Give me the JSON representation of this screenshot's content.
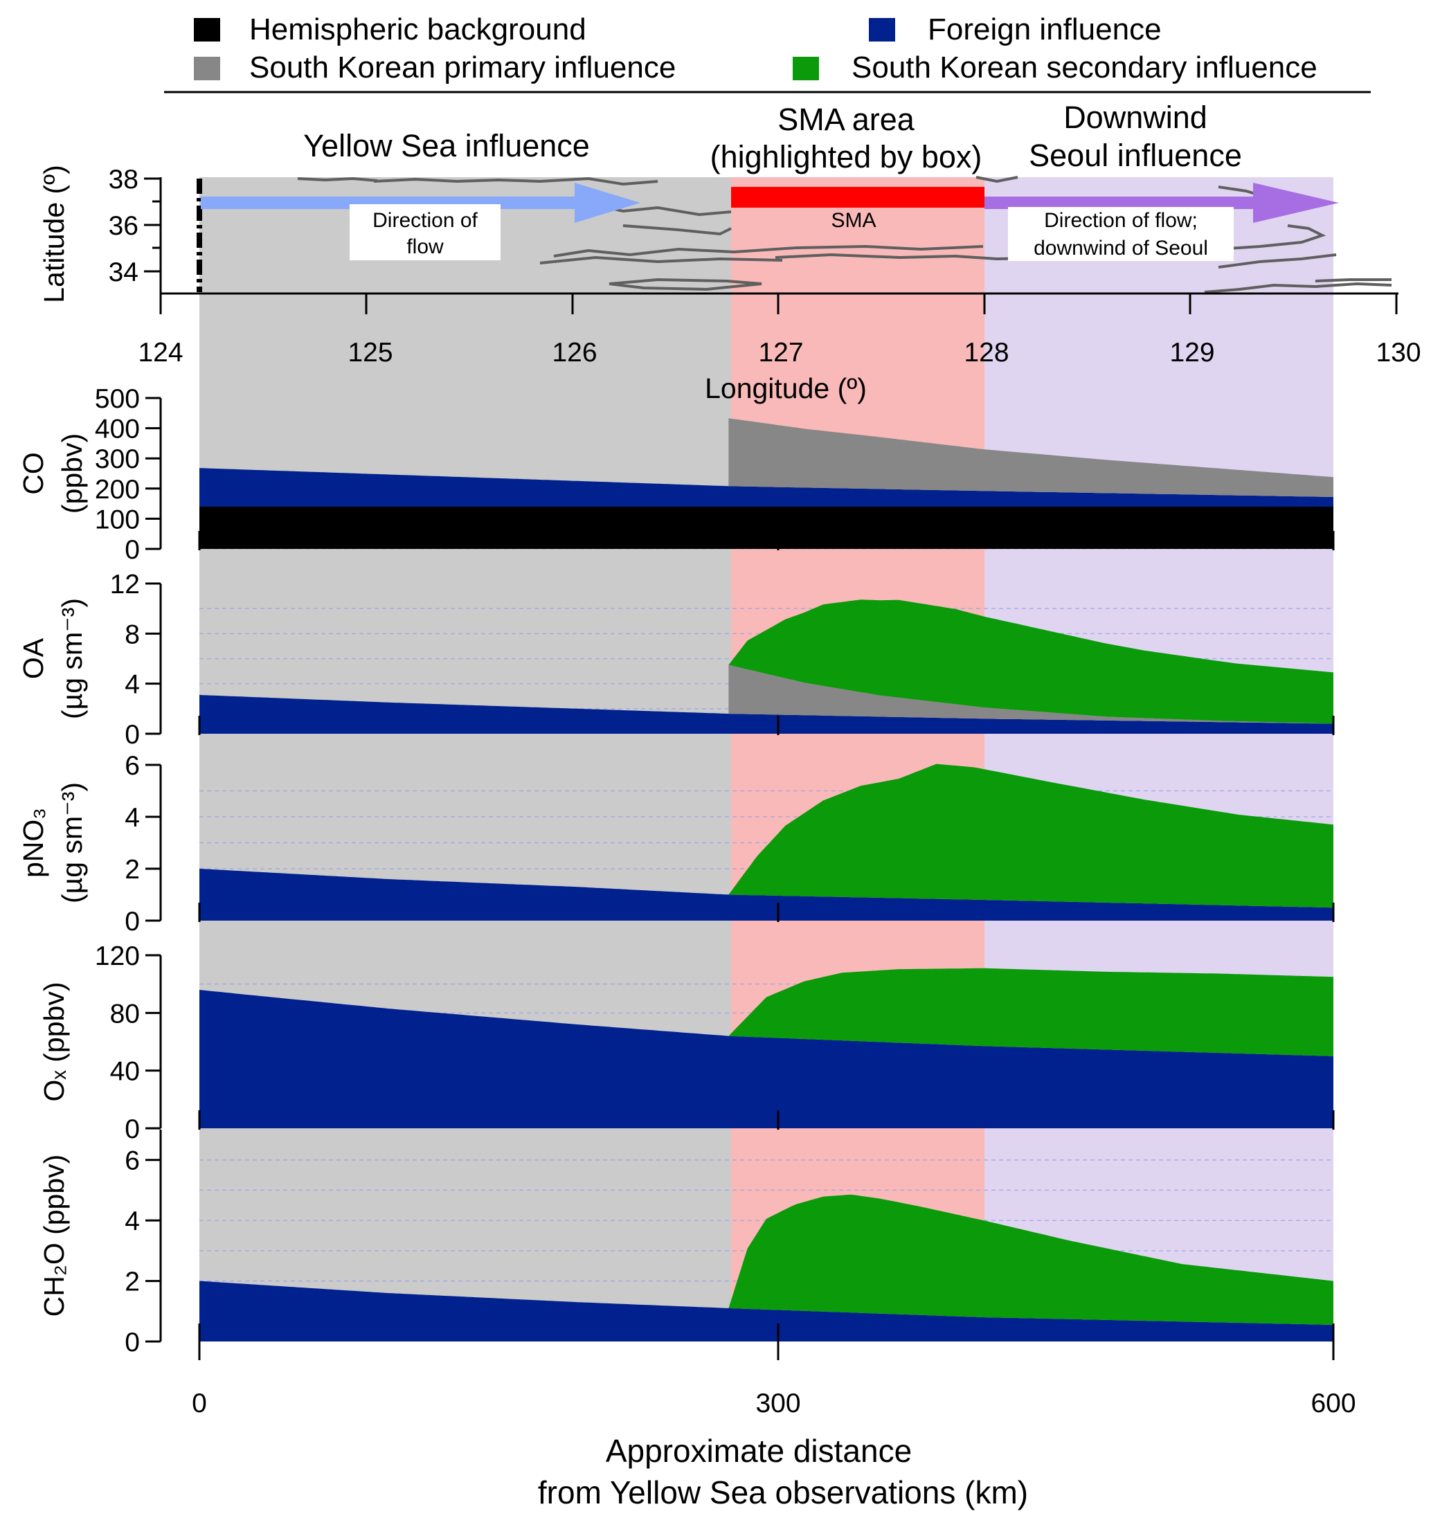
{
  "colors": {
    "hemispheric": "#000000",
    "foreign": "#01218f",
    "primary": "#878787",
    "secondary": "#0a9a0a",
    "region_yellow_sea": "#cbcbcb",
    "region_sma": "#f9b9b9",
    "region_downwind": "#e0d5f0",
    "sma_box": "#ff0000",
    "arrow_yellow": "#88a8fa",
    "arrow_downwind": "#a76de3",
    "track": "#5f5f5f"
  },
  "legend": [
    {
      "key": "hemispheric",
      "label": "Hemispheric background",
      "color": "#000000"
    },
    {
      "key": "foreign",
      "label": "Foreign influence",
      "color": "#01218f"
    },
    {
      "key": "primary",
      "label": "South Korean primary influence",
      "color": "#878787"
    },
    {
      "key": "secondary",
      "label": "South Korean secondary influence",
      "color": "#0a9a0a"
    }
  ],
  "regions": {
    "yellow_sea": "Yellow Sea influence",
    "sma_line1": "SMA area",
    "sma_line2": "(highlighted by box)",
    "downwind_line1": "Downwind",
    "downwind_line2": "Seoul influence"
  },
  "map_panel": {
    "flow_box_line1": "Direction of",
    "flow_box_line2": "flow",
    "sma_box_label": "SMA",
    "downwind_box_line1": "Direction of flow;",
    "downwind_box_line2": "downwind of Seoul",
    "ylabel": "Latitude (º)",
    "xlabel": "Longitude (º)",
    "lat_ticks": [
      "38",
      "36",
      "34"
    ],
    "lon_ticks": [
      "124",
      "125",
      "126",
      "127",
      "128",
      "129",
      "130"
    ]
  },
  "chart_data": {
    "type": "area",
    "x_label_line1": "Approximate distance",
    "x_label_line2": "from Yellow Sea observations (km)",
    "x_ticks": [
      "0",
      "300",
      "600"
    ],
    "xlim": [
      0,
      600
    ],
    "regions_km": {
      "yellow_sea": [
        0,
        280
      ],
      "sma": [
        280,
        415
      ],
      "downwind": [
        415,
        600
      ]
    },
    "panels": [
      {
        "id": "co",
        "ylabel_line1": "CO",
        "ylabel_line2": "(ppbv)",
        "ylim": [
          0,
          500
        ],
        "yticks": [
          "500",
          "400",
          "300",
          "200",
          "100",
          "0"
        ],
        "stack": [
          {
            "key": "hemispheric",
            "x": [
              0,
              600
            ],
            "y": [
              140,
              140
            ]
          },
          {
            "key": "foreign",
            "x": [
              0,
              280,
              415,
              600
            ],
            "y": [
              128,
              68,
              52,
              32
            ]
          },
          {
            "key": "primary",
            "x": [
              280,
              320,
              360,
              415,
              480,
              540,
              600
            ],
            "y": [
              225,
              195,
              172,
              138,
              110,
              88,
              66
            ]
          }
        ]
      },
      {
        "id": "oa",
        "ylabel_line1": "OA",
        "ylabel_line2": "(µg sm⁻³)",
        "ylim": [
          0,
          12
        ],
        "yticks": [
          "12",
          "8",
          "4",
          "0"
        ],
        "stack": [
          {
            "key": "foreign",
            "x": [
              0,
              100,
              200,
              280,
              415,
              600
            ],
            "y": [
              3.1,
              2.5,
              2.0,
              1.6,
              1.2,
              0.8
            ]
          },
          {
            "key": "primary",
            "x": [
              280,
              320,
              360,
              415,
              480,
              540,
              600
            ],
            "y": [
              3.9,
              2.6,
              1.7,
              0.9,
              0.3,
              0.1,
              0.0
            ]
          },
          {
            "key": "secondary",
            "x": [
              280,
              290,
              310,
              330,
              350,
              370,
              400,
              450,
              500,
              550,
              600
            ],
            "y": [
              0.0,
              2.3,
              4.7,
              6.5,
              7.4,
              7.8,
              7.6,
              6.5,
              5.4,
              4.6,
              4.1
            ]
          }
        ]
      },
      {
        "id": "pno3",
        "ylabel_line1": "pNO₃",
        "ylabel_line2": "(µg sm⁻³)",
        "ylim": [
          0,
          6
        ],
        "yticks": [
          "6",
          "4",
          "2",
          "0"
        ],
        "stack": [
          {
            "key": "foreign",
            "x": [
              0,
              100,
              200,
              280,
              415,
              600
            ],
            "y": [
              2.0,
              1.6,
              1.3,
              1.0,
              0.8,
              0.5
            ]
          },
          {
            "key": "secondary",
            "x": [
              280,
              295,
              310,
              330,
              350,
              370,
              390,
              410,
              450,
              500,
              550,
              600
            ],
            "y": [
              0.0,
              1.5,
              2.7,
              3.7,
              4.3,
              4.6,
              5.2,
              5.1,
              4.6,
              4.0,
              3.5,
              3.2
            ]
          }
        ]
      },
      {
        "id": "ox",
        "ylabel_line1": "Oₓ (ppbv)",
        "ylabel_line2": "",
        "ylim": [
          0,
          120
        ],
        "yticks": [
          "120",
          "80",
          "40",
          "0"
        ],
        "stack": [
          {
            "key": "foreign",
            "x": [
              0,
              30,
              100,
              200,
              280,
              415,
              600
            ],
            "y": [
              96,
              92,
              83,
              72,
              64,
              57,
              50
            ]
          },
          {
            "key": "secondary",
            "x": [
              280,
              300,
              320,
              340,
              370,
              415,
              480,
              540,
              600
            ],
            "y": [
              0,
              28,
              40,
              47,
              51,
              54,
              54,
              55,
              55
            ]
          }
        ]
      },
      {
        "id": "ch2o",
        "ylabel_line1": "CH₂O (ppbv)",
        "ylabel_line2": "",
        "ylim": [
          0,
          7
        ],
        "yticks": [
          "6",
          "4",
          "2",
          "0"
        ],
        "stack": [
          {
            "key": "foreign",
            "x": [
              0,
              100,
              200,
              280,
              415,
              600
            ],
            "y": [
              2.0,
              1.6,
              1.3,
              1.1,
              0.8,
              0.55
            ]
          },
          {
            "key": "secondary",
            "x": [
              280,
              290,
              300,
              315,
              330,
              345,
              360,
              380,
              415,
              460,
              520,
              600
            ],
            "y": [
              0.0,
              2.0,
              3.0,
              3.5,
              3.8,
              3.9,
              3.8,
              3.6,
              3.2,
              2.6,
              1.9,
              1.45
            ]
          }
        ]
      }
    ]
  }
}
